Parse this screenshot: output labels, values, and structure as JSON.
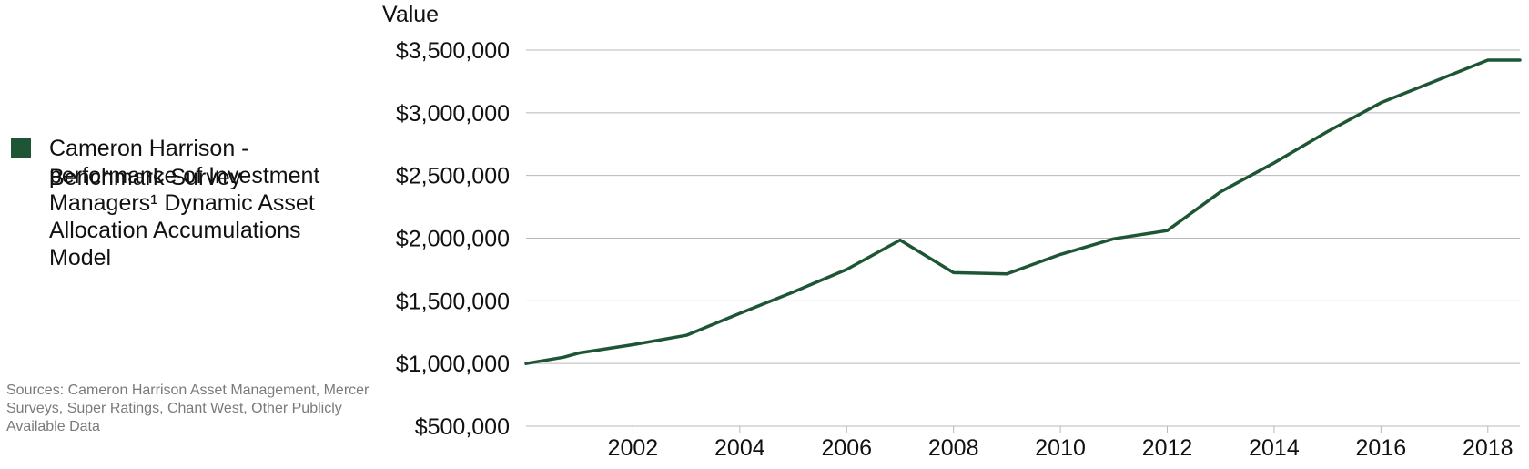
{
  "legend": {
    "series_label": "Cameron Harrison - performance of Investment Managers¹ Dynamic Asset Allocation Accumulations Model",
    "benchmark_label": "Benchmark Survey",
    "series_color": "#1e5535"
  },
  "sources": "Sources: Cameron Harrison Asset Management, Mercer Surveys, Super Ratings, Chant West, Other Publicly Available  Data",
  "chart_data": {
    "type": "line",
    "xlabel": "",
    "ylabel": "Value",
    "xlim": [
      2000.0,
      2018.6
    ],
    "ylim": [
      500000,
      3500000
    ],
    "x_ticks": [
      2002,
      2004,
      2006,
      2008,
      2010,
      2012,
      2014,
      2016,
      2018
    ],
    "x_tick_labels": [
      "2002",
      "2004",
      "2006",
      "2008",
      "2010",
      "2012",
      "2014",
      "2016",
      "2018"
    ],
    "y_ticks": [
      500000,
      1000000,
      1500000,
      2000000,
      2500000,
      3000000,
      3500000
    ],
    "y_tick_labels": [
      "$500,000",
      "$1,000,000",
      "$1,500,000",
      "$2,000,000",
      "$2,500,000",
      "$3,000,000",
      "$3,500,000"
    ],
    "grid": "horizontal",
    "legend_position": "left",
    "series": [
      {
        "name": "Cameron Harrison - performance of Investment Managers¹ Dynamic Asset Allocation Accumulations Model",
        "color": "#1e5535",
        "x": [
          2000.0,
          2000.7,
          2001.0,
          2002.0,
          2003.0,
          2004.0,
          2005.0,
          2006.0,
          2007.0,
          2008.0,
          2009.0,
          2010.0,
          2011.0,
          2012.0,
          2013.0,
          2014.0,
          2015.0,
          2016.0,
          2017.0,
          2018.0,
          2018.6
        ],
        "y": [
          1000000,
          1050000,
          1085000,
          1150000,
          1225000,
          1400000,
          1570000,
          1750000,
          1985000,
          1725000,
          1715000,
          1870000,
          1995000,
          2060000,
          2370000,
          2600000,
          2850000,
          3080000,
          3250000,
          3420000,
          3420000
        ]
      }
    ]
  }
}
